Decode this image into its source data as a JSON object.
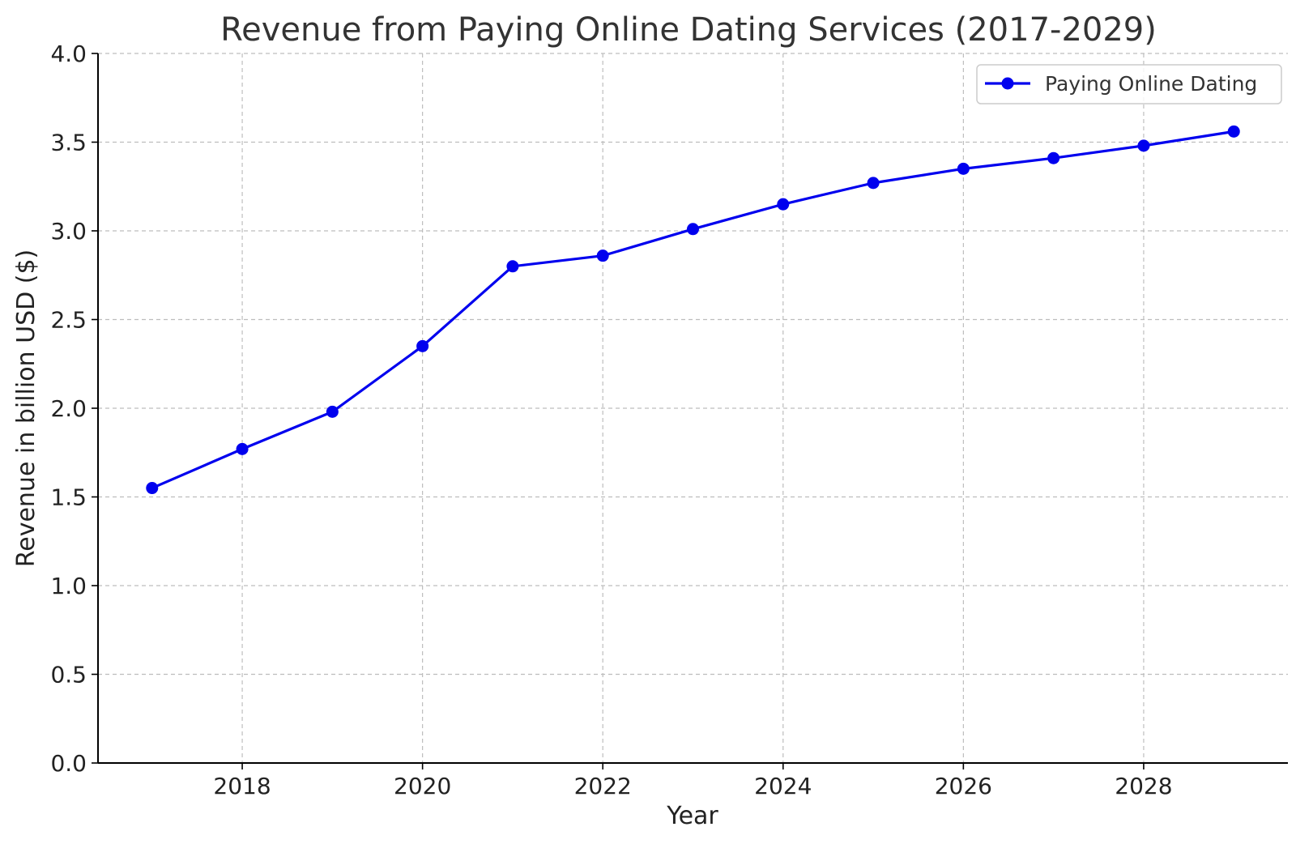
{
  "chart_data": {
    "type": "line",
    "title": "Revenue from Paying Online Dating Services (2017-2029)",
    "xlabel": "Year",
    "ylabel": "Revenue in billion USD ($)",
    "x": [
      2017,
      2018,
      2019,
      2020,
      2021,
      2022,
      2023,
      2024,
      2025,
      2026,
      2027,
      2028,
      2029
    ],
    "series": [
      {
        "name": "Paying Online Dating",
        "color": "#0000ee",
        "marker": "circle",
        "values": [
          1.55,
          1.77,
          1.98,
          2.35,
          2.8,
          2.86,
          3.01,
          3.15,
          3.27,
          3.35,
          3.41,
          3.48,
          3.56
        ]
      }
    ],
    "xlim": [
      2016.4,
      2029.6
    ],
    "ylim": [
      0.0,
      4.0
    ],
    "xticks": [
      2018,
      2020,
      2022,
      2024,
      2026,
      2028
    ],
    "xtick_labels": [
      "2018",
      "2020",
      "2022",
      "2024",
      "2026",
      "2028"
    ],
    "yticks": [
      0.0,
      0.5,
      1.0,
      1.5,
      2.0,
      2.5,
      3.0,
      3.5,
      4.0
    ],
    "ytick_labels": [
      "0.0",
      "0.5",
      "1.0",
      "1.5",
      "2.0",
      "2.5",
      "3.0",
      "3.5",
      "4.0"
    ],
    "grid": true,
    "legend_position": "top-right"
  }
}
